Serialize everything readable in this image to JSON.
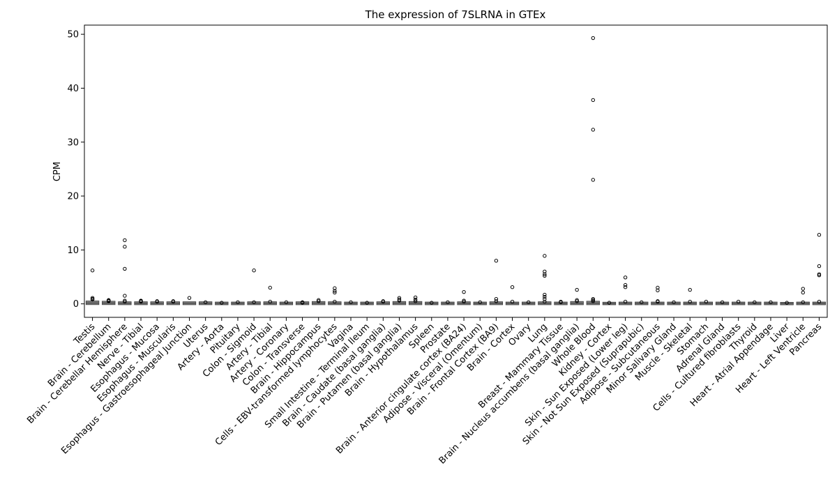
{
  "chart_data": {
    "type": "box",
    "title": "The expression of 7SLRNA in GTEx",
    "xlabel": "",
    "ylabel": "CPM",
    "ylim": [
      -2.5,
      51.7
    ],
    "yticks": [
      0,
      10,
      20,
      30,
      40,
      50
    ],
    "grid": false,
    "legend": "none",
    "box_color": "#808080",
    "categories": [
      "Testis",
      "Brain - Cerebellum",
      "Brain - Cerebellar Hemisphere",
      "Nerve - Tibial",
      "Esophagus - Mucosa",
      "Esophagus - Muscularis",
      "Esophagus - Gastroesophageal Junction",
      "Uterus",
      "Artery - Aorta",
      "Pituitary",
      "Colon - Sigmoid",
      "Artery - Tibial",
      "Artery - Coronary",
      "Colon - Transverse",
      "Brain - Hippocampus",
      "Cells - EBV-transformed lymphocytes",
      "Vagina",
      "Small Intestine - Terminal Ileum",
      "Brain - Caudate (basal ganglia)",
      "Brain - Putamen (basal ganglia)",
      "Brain - Hypothalamus",
      "Spleen",
      "Prostate",
      "Brain - Anterior cingulate cortex (BA24)",
      "Adipose - Visceral (Omentum)",
      "Brain - Frontal Cortex (BA9)",
      "Brain - Cortex",
      "Ovary",
      "Lung",
      "Breast - Mammary Tissue",
      "Brain - Nucleus accumbens (basal ganglia)",
      "Whole Blood",
      "Kidney - Cortex",
      "Skin - Sun Exposed (Lower leg)",
      "Skin - Not Sun Exposed (Suprapubic)",
      "Adipose - Subcutaneous",
      "Minor Salivary Gland",
      "Muscle - Skeletal",
      "Stomach",
      "Adrenal Gland",
      "Cells - Cultured fibroblasts",
      "Thyroid",
      "Heart - Atrial Appendage",
      "Liver",
      "Heart - Left Ventricle",
      "Pancreas"
    ],
    "boxes": [
      {
        "q1": 0.05,
        "median": 0.15,
        "q3": 0.35,
        "whisker_high": 0.8,
        "outliers": [
          6.2,
          1.1,
          0.9,
          0.8
        ]
      },
      {
        "q1": 0.05,
        "median": 0.15,
        "q3": 0.3,
        "whisker_high": 0.6,
        "outliers": [
          0.7,
          0.6,
          0.5
        ]
      },
      {
        "q1": 0.03,
        "median": 0.1,
        "q3": 0.2,
        "whisker_high": 0.4,
        "outliers": [
          11.8,
          10.6,
          6.5,
          1.5,
          0.6,
          0.4
        ]
      },
      {
        "q1": 0.03,
        "median": 0.1,
        "q3": 0.2,
        "whisker_high": 0.4,
        "outliers": [
          0.6,
          0.5,
          0.4
        ]
      },
      {
        "q1": 0.03,
        "median": 0.1,
        "q3": 0.2,
        "whisker_high": 0.4,
        "outliers": [
          0.5,
          0.4
        ]
      },
      {
        "q1": 0.03,
        "median": 0.1,
        "q3": 0.2,
        "whisker_high": 0.4,
        "outliers": [
          0.5,
          0.4
        ]
      },
      {
        "q1": 0.03,
        "median": 0.1,
        "q3": 0.2,
        "whisker_high": 0.35,
        "outliers": [
          1.1
        ]
      },
      {
        "q1": 0.03,
        "median": 0.1,
        "q3": 0.2,
        "whisker_high": 0.3,
        "outliers": [
          0.3
        ]
      },
      {
        "q1": 0.02,
        "median": 0.08,
        "q3": 0.15,
        "whisker_high": 0.3,
        "outliers": [
          0.2
        ]
      },
      {
        "q1": 0.02,
        "median": 0.08,
        "q3": 0.15,
        "whisker_high": 0.3,
        "outliers": [
          0.3
        ]
      },
      {
        "q1": 0.03,
        "median": 0.1,
        "q3": 0.2,
        "whisker_high": 0.4,
        "outliers": [
          6.2,
          0.3
        ]
      },
      {
        "q1": 0.03,
        "median": 0.1,
        "q3": 0.2,
        "whisker_high": 0.4,
        "outliers": [
          3.0,
          0.4
        ]
      },
      {
        "q1": 0.02,
        "median": 0.08,
        "q3": 0.15,
        "whisker_high": 0.3,
        "outliers": [
          0.3
        ]
      },
      {
        "q1": 0.03,
        "median": 0.1,
        "q3": 0.2,
        "whisker_high": 0.35,
        "outliers": [
          0.3,
          0.2
        ]
      },
      {
        "q1": 0.03,
        "median": 0.12,
        "q3": 0.25,
        "whisker_high": 0.5,
        "outliers": [
          0.7,
          0.5
        ]
      },
      {
        "q1": 0.03,
        "median": 0.1,
        "q3": 0.2,
        "whisker_high": 0.4,
        "outliers": [
          2.9,
          2.4,
          2.1,
          0.4
        ]
      },
      {
        "q1": 0.02,
        "median": 0.08,
        "q3": 0.15,
        "whisker_high": 0.3,
        "outliers": [
          0.3
        ]
      },
      {
        "q1": 0.02,
        "median": 0.08,
        "q3": 0.15,
        "whisker_high": 0.3,
        "outliers": [
          0.2
        ]
      },
      {
        "q1": 0.03,
        "median": 0.1,
        "q3": 0.2,
        "whisker_high": 0.4,
        "outliers": [
          0.5,
          0.4
        ]
      },
      {
        "q1": 0.03,
        "median": 0.12,
        "q3": 0.25,
        "whisker_high": 0.5,
        "outliers": [
          1.1,
          0.8,
          0.6
        ]
      },
      {
        "q1": 0.03,
        "median": 0.12,
        "q3": 0.25,
        "whisker_high": 0.5,
        "outliers": [
          1.2,
          0.8,
          0.5
        ]
      },
      {
        "q1": 0.02,
        "median": 0.08,
        "q3": 0.15,
        "whisker_high": 0.3,
        "outliers": [
          0.2
        ]
      },
      {
        "q1": 0.02,
        "median": 0.08,
        "q3": 0.15,
        "whisker_high": 0.3,
        "outliers": [
          0.3
        ]
      },
      {
        "q1": 0.03,
        "median": 0.1,
        "q3": 0.2,
        "whisker_high": 0.4,
        "outliers": [
          2.2,
          0.6,
          0.4
        ]
      },
      {
        "q1": 0.02,
        "median": 0.08,
        "q3": 0.15,
        "whisker_high": 0.3,
        "outliers": [
          0.3
        ]
      },
      {
        "q1": 0.03,
        "median": 0.1,
        "q3": 0.2,
        "whisker_high": 0.4,
        "outliers": [
          8.0,
          0.9,
          0.5
        ]
      },
      {
        "q1": 0.02,
        "median": 0.08,
        "q3": 0.15,
        "whisker_high": 0.3,
        "outliers": [
          3.1,
          0.4
        ]
      },
      {
        "q1": 0.02,
        "median": 0.08,
        "q3": 0.15,
        "whisker_high": 0.3,
        "outliers": [
          0.3
        ]
      },
      {
        "q1": 0.03,
        "median": 0.1,
        "q3": 0.2,
        "whisker_high": 0.4,
        "outliers": [
          8.9,
          6.0,
          5.5,
          5.2,
          1.7,
          1.3,
          0.9,
          0.4
        ]
      },
      {
        "q1": 0.02,
        "median": 0.08,
        "q3": 0.15,
        "whisker_high": 0.3,
        "outliers": [
          0.4,
          0.3
        ]
      },
      {
        "q1": 0.03,
        "median": 0.1,
        "q3": 0.25,
        "whisker_high": 0.5,
        "outliers": [
          2.6,
          0.7,
          0.5
        ]
      },
      {
        "q1": 0.03,
        "median": 0.12,
        "q3": 0.3,
        "whisker_high": 0.5,
        "outliers": [
          49.3,
          37.8,
          32.3,
          23.0,
          0.9,
          0.7,
          0.5
        ]
      },
      {
        "q1": 0.02,
        "median": 0.06,
        "q3": 0.12,
        "whisker_high": 0.2,
        "outliers": [
          0.2
        ]
      },
      {
        "q1": 0.02,
        "median": 0.08,
        "q3": 0.15,
        "whisker_high": 0.3,
        "outliers": [
          4.9,
          3.5,
          3.1,
          0.4
        ]
      },
      {
        "q1": 0.02,
        "median": 0.08,
        "q3": 0.15,
        "whisker_high": 0.3,
        "outliers": [
          0.3
        ]
      },
      {
        "q1": 0.02,
        "median": 0.08,
        "q3": 0.15,
        "whisker_high": 0.3,
        "outliers": [
          3.0,
          2.5,
          0.5,
          0.4
        ]
      },
      {
        "q1": 0.02,
        "median": 0.08,
        "q3": 0.15,
        "whisker_high": 0.3,
        "outliers": [
          0.3
        ]
      },
      {
        "q1": 0.02,
        "median": 0.08,
        "q3": 0.15,
        "whisker_high": 0.3,
        "outliers": [
          2.6,
          0.4
        ]
      },
      {
        "q1": 0.02,
        "median": 0.08,
        "q3": 0.15,
        "whisker_high": 0.3,
        "outliers": [
          0.4
        ]
      },
      {
        "q1": 0.02,
        "median": 0.08,
        "q3": 0.15,
        "whisker_high": 0.3,
        "outliers": [
          0.3
        ]
      },
      {
        "q1": 0.02,
        "median": 0.08,
        "q3": 0.15,
        "whisker_high": 0.3,
        "outliers": [
          0.4
        ]
      },
      {
        "q1": 0.02,
        "median": 0.08,
        "q3": 0.15,
        "whisker_high": 0.3,
        "outliers": [
          0.3
        ]
      },
      {
        "q1": 0.02,
        "median": 0.08,
        "q3": 0.15,
        "whisker_high": 0.3,
        "outliers": [
          0.3
        ]
      },
      {
        "q1": 0.01,
        "median": 0.05,
        "q3": 0.1,
        "whisker_high": 0.2,
        "outliers": [
          0.2
        ]
      },
      {
        "q1": 0.02,
        "median": 0.08,
        "q3": 0.15,
        "whisker_high": 0.3,
        "outliers": [
          2.8,
          2.1,
          0.3
        ]
      },
      {
        "q1": 0.02,
        "median": 0.08,
        "q3": 0.15,
        "whisker_high": 0.3,
        "outliers": [
          12.8,
          7.0,
          5.5,
          5.3,
          0.4
        ]
      }
    ]
  }
}
